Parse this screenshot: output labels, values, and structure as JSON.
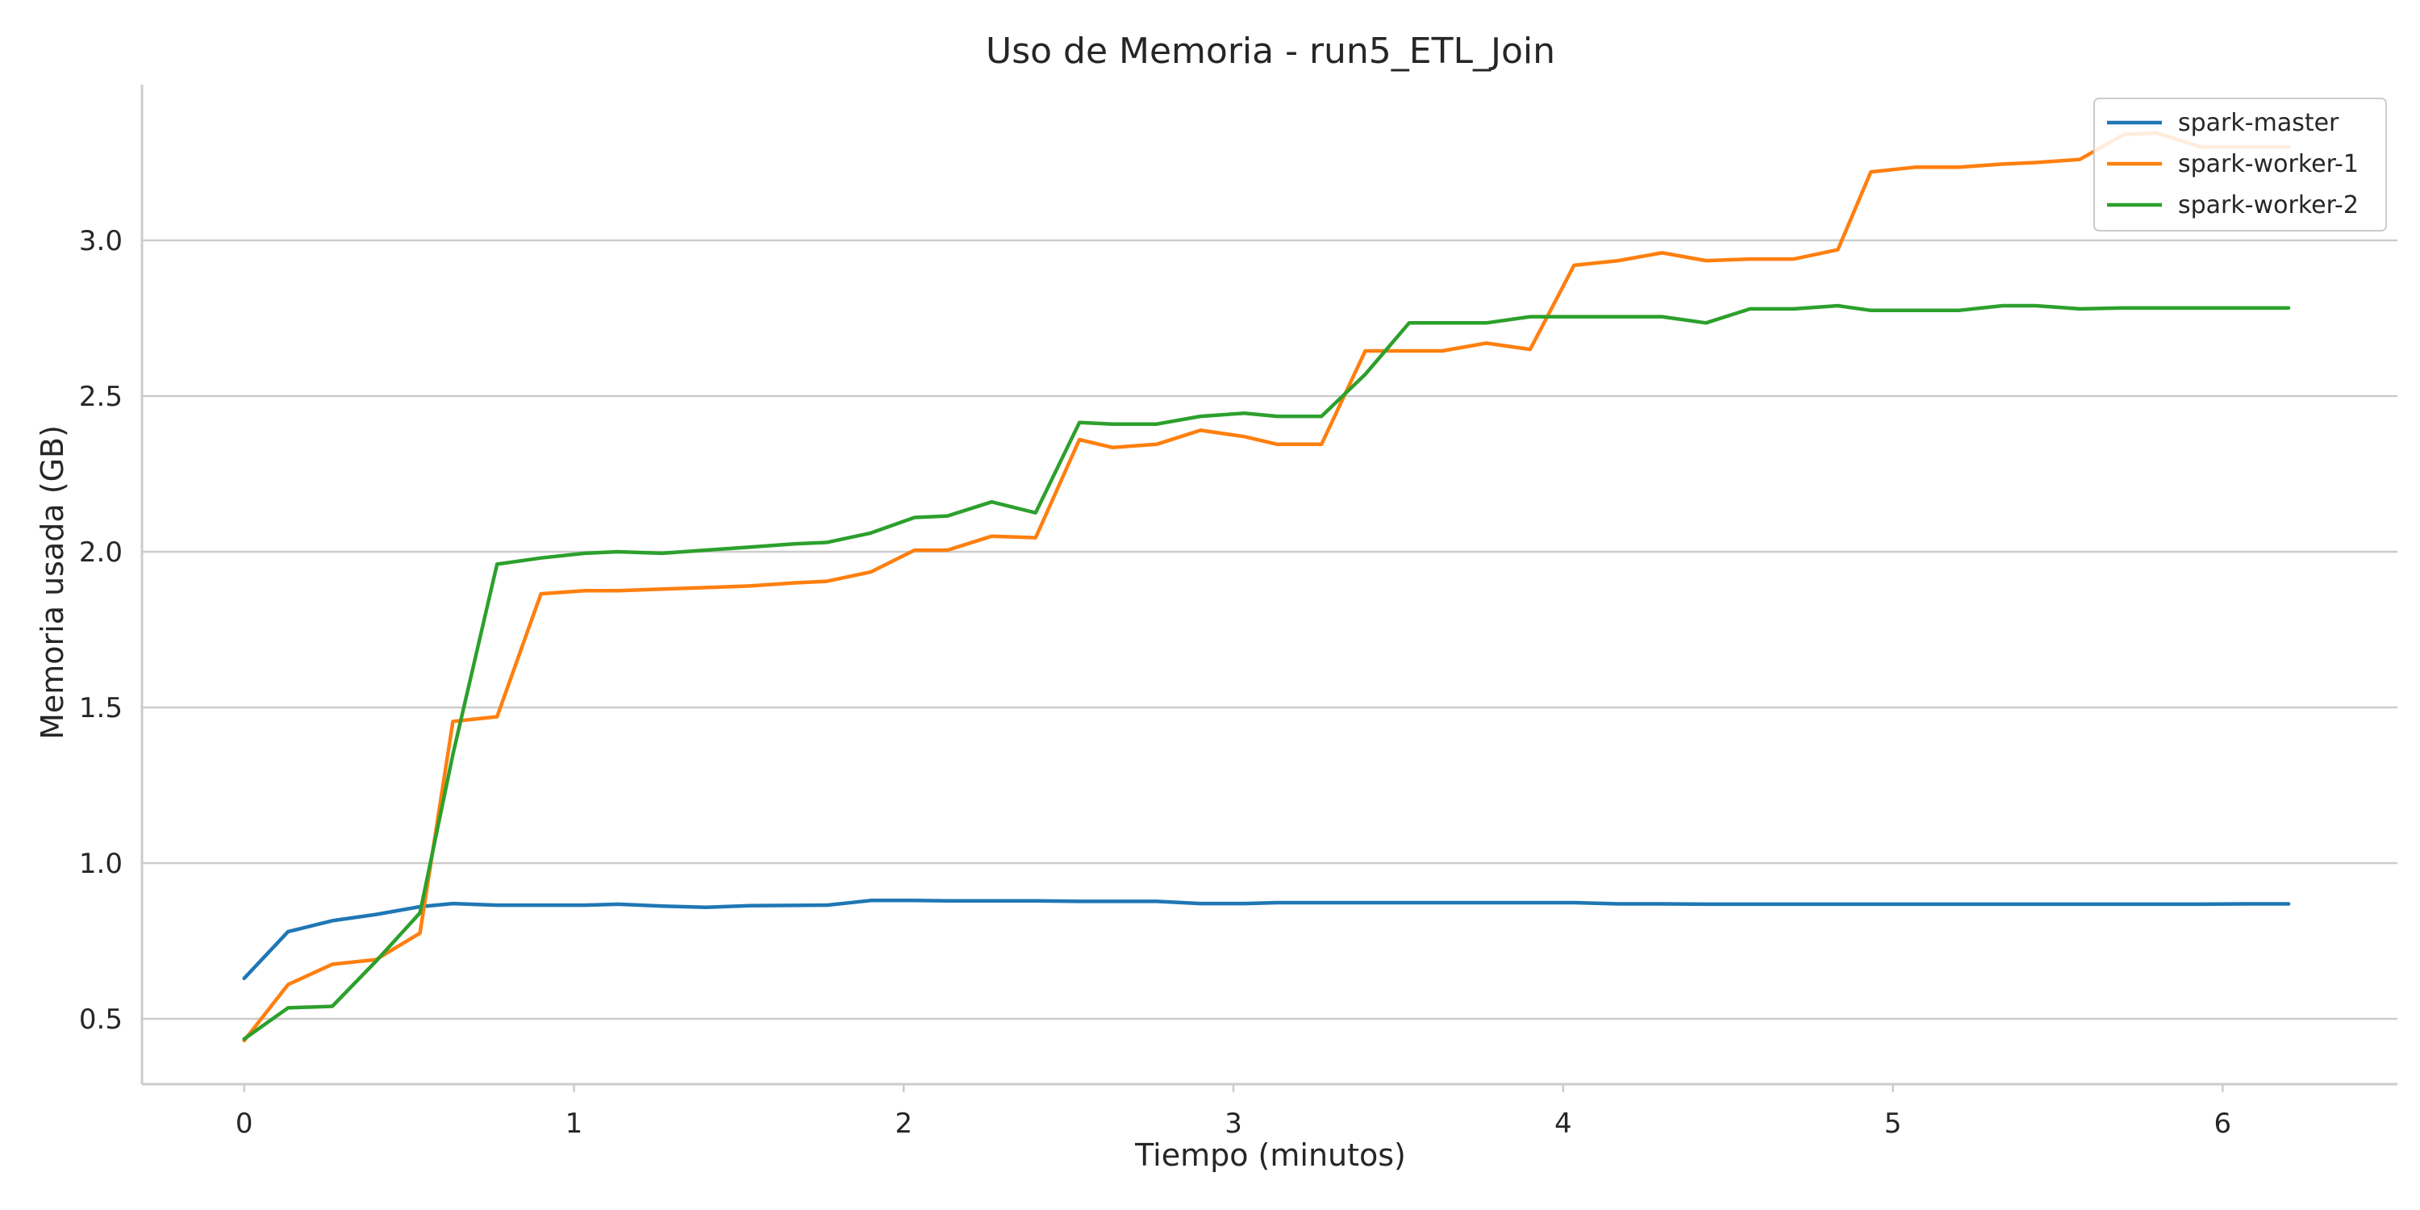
{
  "chart_data": {
    "type": "line",
    "title": "Uso de Memoria - run5_ETL_Join",
    "xlabel": "Tiempo (minutos)",
    "ylabel": "Memoria usada (GB)",
    "xlim": [
      -0.31,
      6.53
    ],
    "ylim": [
      0.29,
      3.5
    ],
    "xticks": [
      0,
      1,
      2,
      3,
      4,
      5,
      6
    ],
    "xtick_labels": [
      "0",
      "1",
      "2",
      "3",
      "4",
      "5",
      "6"
    ],
    "yticks": [
      0.5,
      1.0,
      1.5,
      2.0,
      2.5,
      3.0
    ],
    "ytick_labels": [
      "0.5",
      "1.0",
      "1.5",
      "2.0",
      "2.5",
      "3.0"
    ],
    "grid": "y",
    "legend_position": "top-right",
    "x": [
      0,
      0.133,
      0.267,
      0.4,
      0.533,
      0.633,
      0.767,
      0.9,
      1.033,
      1.133,
      1.267,
      1.4,
      1.533,
      1.667,
      1.767,
      1.9,
      2.033,
      2.133,
      2.267,
      2.4,
      2.533,
      2.633,
      2.767,
      2.9,
      3.033,
      3.133,
      3.267,
      3.4,
      3.533,
      3.633,
      3.767,
      3.9,
      4.033,
      4.167,
      4.3,
      4.433,
      4.567,
      4.7,
      4.833,
      4.933,
      5.067,
      5.2,
      5.333,
      5.433,
      5.567,
      5.7,
      5.8,
      5.933,
      6.067,
      6.2
    ],
    "series": [
      {
        "name": "spark-master",
        "color": "#1f77b4",
        "values": [
          0.63,
          0.78,
          0.815,
          0.835,
          0.86,
          0.87,
          0.865,
          0.865,
          0.865,
          0.868,
          0.862,
          0.858,
          0.863,
          0.864,
          0.865,
          0.88,
          0.88,
          0.879,
          0.879,
          0.879,
          0.877,
          0.877,
          0.877,
          0.87,
          0.87,
          0.873,
          0.873,
          0.873,
          0.873,
          0.873,
          0.873,
          0.873,
          0.873,
          0.869,
          0.869,
          0.868,
          0.868,
          0.868,
          0.868,
          0.868,
          0.868,
          0.868,
          0.868,
          0.868,
          0.868,
          0.868,
          0.868,
          0.868,
          0.869,
          0.869
        ]
      },
      {
        "name": "spark-worker-1",
        "color": "#ff7f0e",
        "values": [
          0.43,
          0.61,
          0.675,
          0.69,
          0.775,
          1.455,
          1.47,
          1.865,
          1.875,
          1.875,
          1.88,
          1.885,
          1.89,
          1.9,
          1.905,
          1.935,
          2.005,
          2.005,
          2.05,
          2.045,
          2.36,
          2.335,
          2.345,
          2.39,
          2.37,
          2.345,
          2.345,
          2.645,
          2.645,
          2.645,
          2.67,
          2.65,
          2.92,
          2.935,
          2.96,
          2.935,
          2.94,
          2.94,
          2.97,
          3.22,
          3.235,
          3.235,
          3.245,
          3.25,
          3.26,
          3.34,
          3.345,
          3.3,
          3.3,
          3.3
        ]
      },
      {
        "name": "spark-worker-2",
        "color": "#2ca02c",
        "values": [
          0.435,
          0.535,
          0.54,
          0.685,
          0.84,
          1.35,
          1.96,
          1.98,
          1.995,
          2.0,
          1.995,
          2.005,
          2.015,
          2.025,
          2.03,
          2.06,
          2.11,
          2.115,
          2.16,
          2.125,
          2.415,
          2.41,
          2.41,
          2.435,
          2.445,
          2.435,
          2.435,
          2.57,
          2.735,
          2.735,
          2.735,
          2.755,
          2.755,
          2.755,
          2.755,
          2.735,
          2.78,
          2.78,
          2.79,
          2.775,
          2.775,
          2.775,
          2.79,
          2.79,
          2.78,
          2.783,
          2.783,
          2.783,
          2.783,
          2.783
        ]
      }
    ]
  }
}
